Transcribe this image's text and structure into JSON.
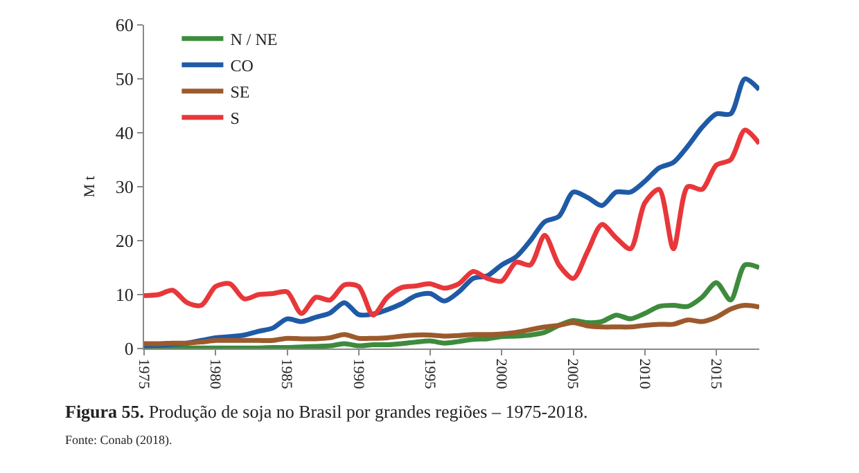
{
  "chart_data": {
    "type": "line",
    "ylabel": "M t",
    "x": [
      1975,
      1976,
      1977,
      1978,
      1979,
      1980,
      1981,
      1982,
      1983,
      1984,
      1985,
      1986,
      1987,
      1988,
      1989,
      1990,
      1991,
      1992,
      1993,
      1994,
      1995,
      1996,
      1997,
      1998,
      1999,
      2000,
      2001,
      2002,
      2003,
      2004,
      2005,
      2006,
      2007,
      2008,
      2009,
      2010,
      2011,
      2012,
      2013,
      2014,
      2015,
      2016,
      2017,
      2018
    ],
    "series": [
      {
        "name": "N / NE",
        "color": "#3d8b3d",
        "values": [
          0.1,
          0.1,
          0.1,
          0.1,
          0.1,
          0.1,
          0.1,
          0.1,
          0.1,
          0.2,
          0.2,
          0.3,
          0.4,
          0.5,
          0.9,
          0.5,
          0.7,
          0.7,
          0.9,
          1.2,
          1.4,
          1.0,
          1.3,
          1.7,
          1.8,
          2.2,
          2.3,
          2.5,
          3.0,
          4.3,
          5.2,
          4.8,
          5.0,
          6.2,
          5.5,
          6.5,
          7.8,
          8.0,
          7.8,
          9.5,
          12.2,
          9.0,
          15.5,
          15
        ]
      },
      {
        "name": "CO",
        "color": "#1f5aa6",
        "values": [
          0.5,
          0.6,
          0.8,
          1.0,
          1.5,
          2.0,
          2.2,
          2.5,
          3.2,
          3.8,
          5.5,
          5.0,
          5.8,
          6.6,
          8.5,
          6.3,
          6.4,
          7.2,
          8.3,
          9.8,
          10.2,
          8.8,
          10.5,
          13,
          13.5,
          15.5,
          17,
          20,
          23.5,
          24.5,
          29,
          28,
          26.5,
          29,
          29,
          31,
          33.5,
          34.5,
          37.5,
          41,
          43.5,
          43.5,
          50,
          48
        ]
      },
      {
        "name": "SE",
        "color": "#9c5a2c",
        "values": [
          0.9,
          0.9,
          1.0,
          1.0,
          1.2,
          1.5,
          1.5,
          1.5,
          1.5,
          1.5,
          1.9,
          1.8,
          1.8,
          2.0,
          2.6,
          1.9,
          1.9,
          2.0,
          2.3,
          2.5,
          2.5,
          2.3,
          2.4,
          2.6,
          2.6,
          2.7,
          3.0,
          3.5,
          4.0,
          4.3,
          4.8,
          4.2,
          4.0,
          4.0,
          4.0,
          4.3,
          4.5,
          4.5,
          5.3,
          5.0,
          5.8,
          7.3,
          8.0,
          7.7
        ]
      },
      {
        "name": "S",
        "color": "#e8373a",
        "values": [
          9.8,
          10,
          10.8,
          8.5,
          8,
          11.5,
          12,
          9.2,
          10,
          10.2,
          10.5,
          6.5,
          9.5,
          9,
          11.8,
          11.5,
          6.2,
          9.5,
          11.3,
          11.6,
          12,
          11.2,
          12,
          14.3,
          13,
          12.5,
          16,
          15.5,
          21,
          15.5,
          13,
          18,
          23,
          20.5,
          18.5,
          27,
          29.5,
          18.5,
          30,
          29.5,
          34,
          35,
          40.5,
          38
        ]
      }
    ],
    "xlim": [
      1975,
      2018
    ],
    "xticks": [
      1975,
      1980,
      1985,
      1990,
      1995,
      2000,
      2005,
      2010,
      2015
    ],
    "ylim": [
      0,
      60
    ],
    "yticks": [
      0,
      10,
      20,
      30,
      40,
      50,
      60
    ],
    "grid": false,
    "legend": "top left",
    "marker": "none",
    "line_style": "solid",
    "annotations": [
      "Figura 55. Produção de soja no Brasil por grandes regiões – 1975-2018.",
      "Fonte: Conab (2018)."
    ]
  }
}
